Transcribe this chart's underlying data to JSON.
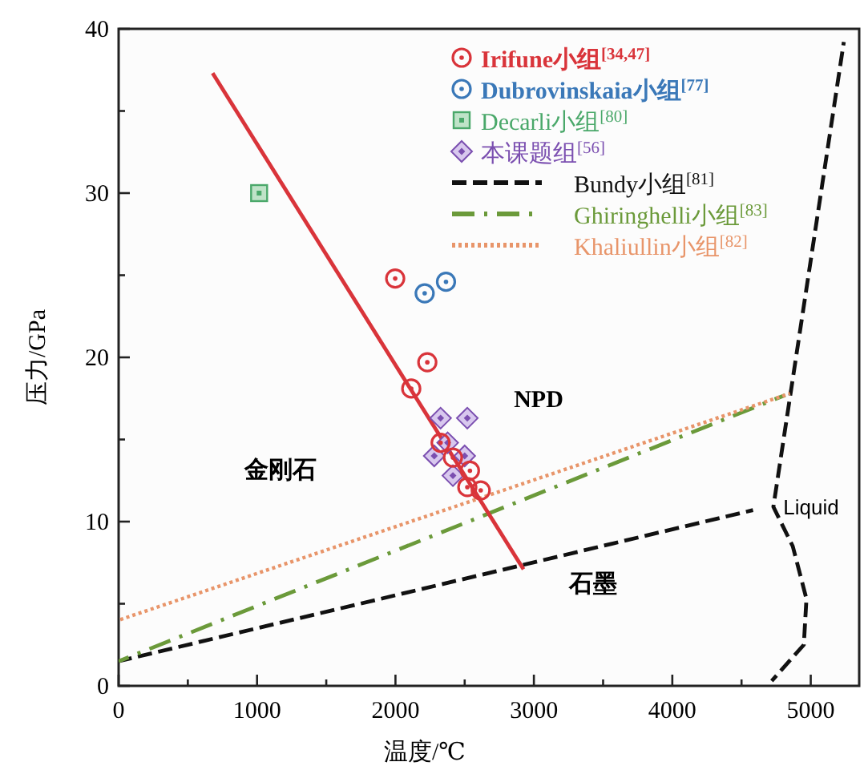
{
  "chart_data": {
    "type": "scatter",
    "xlabel": "温度/℃",
    "ylabel": "压力/GPa",
    "xlim": [
      0,
      5350
    ],
    "ylim": [
      0,
      40
    ],
    "xticks": [
      0,
      {
        "value": 500,
        "label": null
      },
      1000,
      {
        "value": 1500,
        "label": null
      },
      2000,
      {
        "value": 2500,
        "label": null
      },
      3000,
      {
        "value": 3500,
        "label": null
      },
      4000,
      {
        "value": 4500,
        "label": null
      },
      5000
    ],
    "yticks": [
      0,
      {
        "value": 5,
        "label": null
      },
      10,
      {
        "value": 15,
        "label": null
      },
      20,
      {
        "value": 25,
        "label": null
      },
      30,
      {
        "value": 35,
        "label": null
      },
      40
    ],
    "legend": "top right",
    "grid": false,
    "series": [
      {
        "name": "Irifune小组$^{[34,47]}$",
        "marker": "circle",
        "color": "#d9343a",
        "x": [
          1998,
          2230,
          2114,
          2326,
          2415,
          2538,
          2519,
          2616
        ],
        "values": [
          24.8,
          19.7,
          18.1,
          14.8,
          13.9,
          13.1,
          12.1,
          11.9
        ]
      },
      {
        "name": "Dubrovinskaia小组$^{[77]}$",
        "marker": "circle",
        "color": "#3a78b8",
        "x": [
          2211,
          2365
        ],
        "values": [
          23.9,
          24.6
        ]
      },
      {
        "name": "Decarli小组$^{[80]}$",
        "marker": "square",
        "color": "#4aa86a",
        "x": [
          1015
        ],
        "values": [
          30.0
        ]
      },
      {
        "name": "本课题组$^{[56]}$",
        "marker": "diamond",
        "color": "#7b4fb0",
        "x": [
          2326,
          2519,
          2377,
          2280,
          2500,
          2415
        ],
        "values": [
          16.3,
          16.3,
          14.8,
          14.0,
          14.0,
          12.8
        ]
      },
      {
        "name": "Bundy小组$^{[81]}$",
        "type": "line",
        "line_style": "dashed",
        "color": "#111111",
        "x": [
          0,
          4583
        ],
        "values": [
          1.5,
          10.7
        ]
      },
      {
        "type": "line",
        "line_style": "dashed",
        "color": "#111111",
        "x": [
          5239,
          4730,
          4870,
          4969,
          4950,
          4718
        ],
        "values": [
          39.2,
          10.9,
          8.5,
          5.3,
          2.5,
          0.3
        ]
      },
      {
        "name": "Ghiringhelli小组$^{[83]}$",
        "type": "line",
        "line_style": "dashdot",
        "color": "#6b9a3a",
        "x": [
          0,
          4815
        ],
        "values": [
          1.5,
          17.7
        ]
      },
      {
        "name": "Khaliullin小组$^{[82]}$",
        "type": "line",
        "line_style": "dotted",
        "color": "#e8956a",
        "x": [
          0,
          4850
        ],
        "values": [
          4.0,
          17.8
        ]
      },
      {
        "type": "line",
        "line_style": "solid",
        "color": "#d9343a",
        "x": [
          679,
          2925
        ],
        "values": [
          37.3,
          7.1
        ]
      }
    ],
    "annotations": [
      "NPD",
      "金刚石",
      "石墨",
      "Liquid"
    ]
  }
}
